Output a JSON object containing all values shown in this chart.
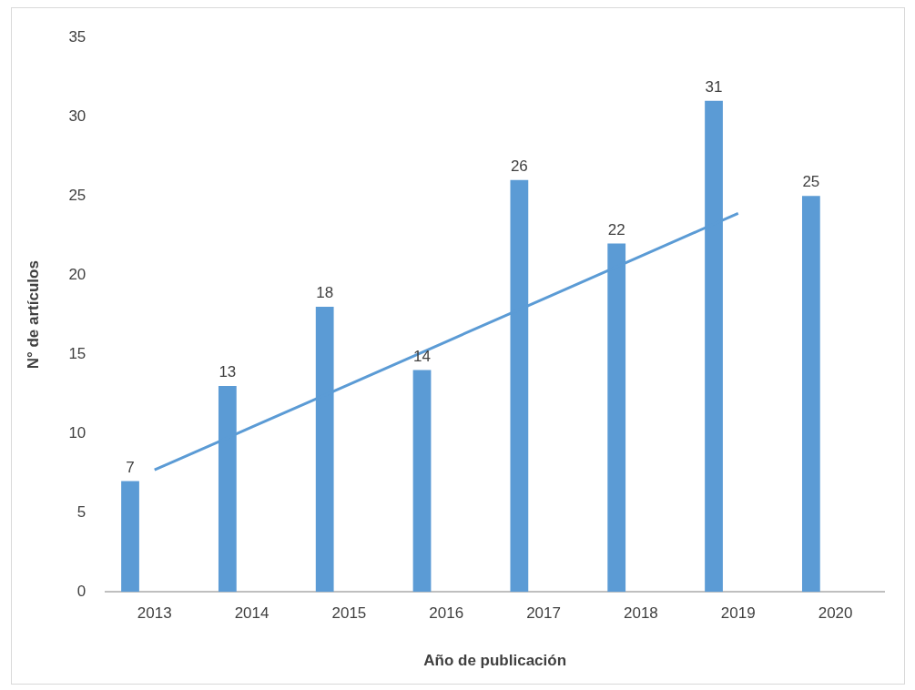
{
  "chart_data": {
    "type": "bar",
    "xlabel": "Año de publicación",
    "ylabel": "N° de artículos",
    "categories": [
      "2013",
      "2014",
      "2015",
      "2016",
      "2017",
      "2018",
      "2019",
      "2020"
    ],
    "series": [
      {
        "color": "#5b9bd5",
        "values": [
          7,
          13,
          18,
          14,
          26,
          22,
          31,
          25
        ],
        "value_labels": [
          "7",
          "13",
          "18",
          "14",
          "26",
          "22",
          "31",
          "25"
        ]
      },
      {
        "type": "line",
        "color": "#5b9bd5",
        "values": [
          7.7,
          10.4,
          13.1,
          15.8,
          18.5,
          21.2,
          23.9,
          null
        ]
      }
    ],
    "ylim": [
      0,
      35
    ],
    "yticks": [
      0,
      5,
      10,
      15,
      20,
      25,
      30,
      35
    ],
    "grid": false,
    "legend": false
  }
}
